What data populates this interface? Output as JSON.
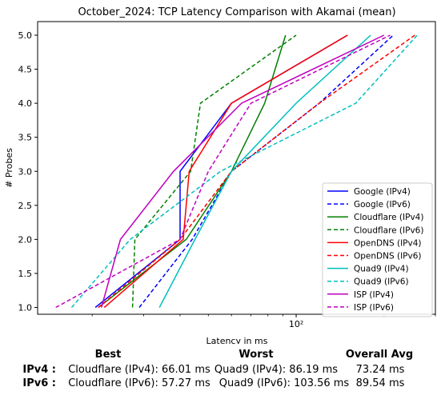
{
  "chart_data": {
    "type": "line",
    "title": "October_2024: TCP Latency Comparison with Akamai (mean)",
    "xlabel": "Latency in ms",
    "ylabel": "# Probes",
    "x_scale": "log",
    "xlim": [
      13,
      300
    ],
    "ylim": [
      0.9,
      5.2
    ],
    "x_tick_labels": [
      {
        "value": 100,
        "label": "10²"
      }
    ],
    "y_ticks": [
      1.0,
      1.5,
      2.0,
      2.5,
      3.0,
      3.5,
      4.0,
      4.5,
      5.0
    ],
    "y_tick_labels": [
      "1.0",
      "1.5",
      "2.0",
      "2.5",
      "3.0",
      "3.5",
      "4.0",
      "4.5",
      "5.0"
    ],
    "grid": false,
    "legend_position": "lower-right",
    "series": [
      {
        "name": "Google (IPv4)",
        "color": "#0000ff",
        "dash": "solid",
        "x": [
          20.5,
          40,
          40,
          60,
          150
        ],
        "y": [
          1,
          2,
          3,
          4,
          5
        ]
      },
      {
        "name": "Google (IPv6)",
        "color": "#0000ff",
        "dash": "dashed",
        "x": [
          29,
          44,
          60,
          120,
          215
        ],
        "y": [
          1,
          2,
          3,
          4,
          5
        ]
      },
      {
        "name": "Cloudflare (IPv4)",
        "color": "#008000",
        "dash": "solid",
        "x": [
          21,
          42,
          60,
          78,
          92
        ],
        "y": [
          1,
          2,
          3,
          4,
          5
        ]
      },
      {
        "name": "Cloudflare (IPv6)",
        "color": "#008000",
        "dash": "dashed",
        "x": [
          27.5,
          28,
          43.5,
          47,
          100
        ],
        "y": [
          1,
          2,
          3,
          4,
          5
        ]
      },
      {
        "name": "OpenDNS (IPv4)",
        "color": "#ff0000",
        "dash": "solid",
        "x": [
          22,
          41,
          43,
          60,
          150
        ],
        "y": [
          1,
          2,
          3,
          4,
          5
        ]
      },
      {
        "name": "OpenDNS (IPv6)",
        "color": "#ff0000",
        "dash": "dashed",
        "x": [
          21,
          40,
          60,
          120,
          255
        ],
        "y": [
          1,
          2,
          3,
          4,
          5
        ]
      },
      {
        "name": "Quad9 (IPv4)",
        "color": "#00bfbf",
        "dash": "solid",
        "x": [
          34,
          45,
          60,
          100,
          180
        ],
        "y": [
          1,
          2,
          3,
          4,
          5
        ]
      },
      {
        "name": "Quad9 (IPv6)",
        "color": "#00bfbf",
        "dash": "dashed",
        "x": [
          17,
          27,
          55,
          160,
          260
        ],
        "y": [
          1,
          2,
          3,
          4,
          5
        ]
      },
      {
        "name": "ISP (IPv4)",
        "color": "#bf00bf",
        "dash": "solid",
        "x": [
          21.5,
          25,
          38,
          65,
          200
        ],
        "y": [
          1,
          2,
          3,
          4,
          5
        ]
      },
      {
        "name": "ISP (IPv6)",
        "color": "#bf00bf",
        "dash": "dashed",
        "x": [
          15,
          40,
          50,
          70,
          210
        ],
        "y": [
          1,
          2,
          3,
          4,
          5
        ]
      }
    ]
  },
  "summary": {
    "headers": {
      "best": "Best",
      "worst": "Worst",
      "avg": "Overall Avg"
    },
    "rows": [
      {
        "label": "IPv4 :",
        "best": "Cloudflare (IPv4): 66.01 ms",
        "worst": "Quad9 (IPv4): 86.19 ms",
        "avg": "73.24 ms"
      },
      {
        "label": "IPv6 :",
        "best": "Cloudflare (IPv6): 57.27 ms",
        "worst": "Quad9 (IPv6): 103.56 ms",
        "avg": "89.54 ms"
      }
    ]
  }
}
